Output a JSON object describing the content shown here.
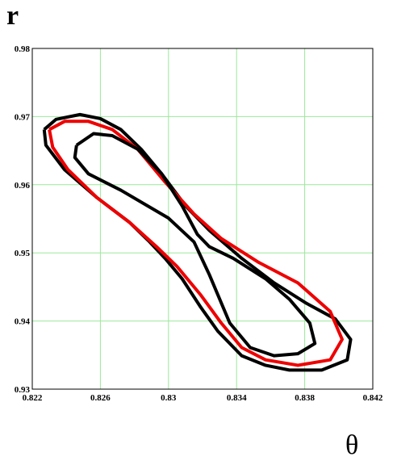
{
  "chart_data": {
    "type": "line",
    "y_label": "r",
    "x_label": "θ",
    "xlim": [
      0.822,
      0.842
    ],
    "ylim": [
      0.93,
      0.98
    ],
    "xticks": [
      0.822,
      0.826,
      0.83,
      0.834,
      0.838,
      0.842
    ],
    "yticks": [
      0.93,
      0.94,
      0.95,
      0.96,
      0.97,
      0.98
    ],
    "grid": true,
    "grid_color": "#9be89b",
    "series": [
      {
        "color": "#000000",
        "x": [
          0.8227,
          0.8234,
          0.8248,
          0.826,
          0.8272,
          0.8284,
          0.8296,
          0.831,
          0.8324,
          0.8343,
          0.8362,
          0.8381,
          0.8398,
          0.8407,
          0.8405,
          0.839,
          0.8371,
          0.8357,
          0.8343,
          0.8329,
          0.8319,
          0.8308,
          0.8298,
          0.8289,
          0.8277,
          0.8258,
          0.8239,
          0.8228,
          0.8227
        ],
        "values": [
          0.9681,
          0.9696,
          0.9703,
          0.9697,
          0.9681,
          0.9652,
          0.9616,
          0.9569,
          0.9533,
          0.9492,
          0.9456,
          0.9426,
          0.9403,
          0.9373,
          0.9343,
          0.9328,
          0.9328,
          0.9335,
          0.9349,
          0.9385,
          0.942,
          0.9462,
          0.9492,
          0.9516,
          0.9545,
          0.9581,
          0.9622,
          0.9658,
          0.9681
        ]
      },
      {
        "color": "#ee0000",
        "x": [
          0.823,
          0.8239,
          0.8253,
          0.8267,
          0.8282,
          0.8298,
          0.8315,
          0.8331,
          0.8353,
          0.8376,
          0.8395,
          0.8402,
          0.8395,
          0.8376,
          0.8357,
          0.8343,
          0.8331,
          0.8319,
          0.8305,
          0.8293,
          0.8277,
          0.8258,
          0.8241,
          0.8232,
          0.823
        ],
        "values": [
          0.9681,
          0.9693,
          0.9693,
          0.9681,
          0.9652,
          0.9604,
          0.9557,
          0.9521,
          0.9486,
          0.9456,
          0.9414,
          0.9373,
          0.9343,
          0.9335,
          0.9343,
          0.9361,
          0.9397,
          0.9438,
          0.948,
          0.9509,
          0.9545,
          0.9581,
          0.9622,
          0.9655,
          0.9681
        ]
      },
      {
        "color": "#000000",
        "x": [
          0.8246,
          0.8256,
          0.8267,
          0.8282,
          0.8296,
          0.8308,
          0.8317,
          0.8324,
          0.8338,
          0.8357,
          0.8371,
          0.8383,
          0.8386,
          0.8376,
          0.8362,
          0.8348,
          0.8336,
          0.8324,
          0.8315,
          0.83,
          0.8272,
          0.8253,
          0.8245,
          0.8246
        ],
        "values": [
          0.9658,
          0.9675,
          0.9672,
          0.9652,
          0.9616,
          0.9569,
          0.9527,
          0.9509,
          0.9492,
          0.9462,
          0.9432,
          0.9397,
          0.9367,
          0.9352,
          0.9349,
          0.9361,
          0.9397,
          0.9468,
          0.9516,
          0.9551,
          0.9592,
          0.9616,
          0.964,
          0.9658
        ]
      }
    ]
  }
}
